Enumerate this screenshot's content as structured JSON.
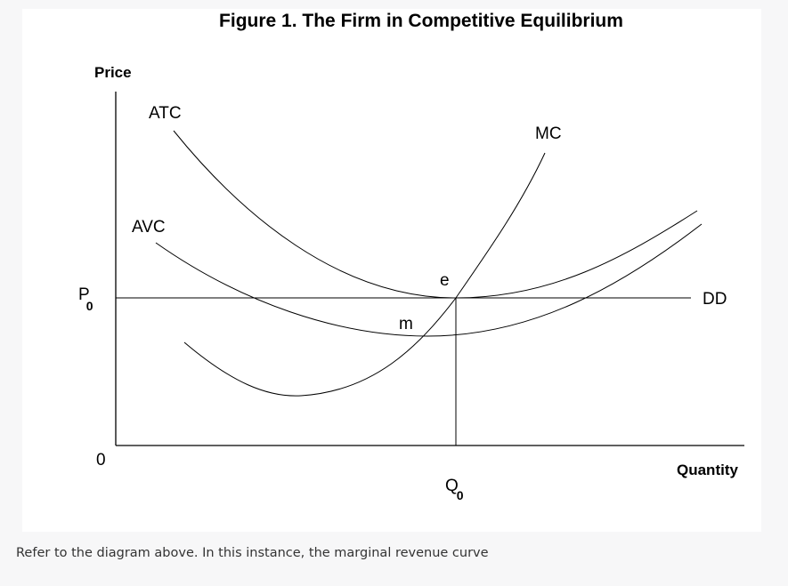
{
  "figure": {
    "title": "Figure 1. The Firm in Competitive Equilibrium",
    "y_axis_label": "Price",
    "x_axis_label": "Quantity",
    "origin_label": "0",
    "price_label": {
      "main": "P",
      "sub": "0"
    },
    "quantity_label": {
      "main": "Q",
      "sub": "0"
    },
    "curves": {
      "atc": "ATC",
      "avc": "AVC",
      "mc": "MC",
      "dd": "DD"
    },
    "points": {
      "e": "e",
      "m": "m"
    },
    "line_color": "#000000"
  },
  "question": {
    "text": "Refer to the diagram above. In this instance, the marginal revenue curve"
  }
}
